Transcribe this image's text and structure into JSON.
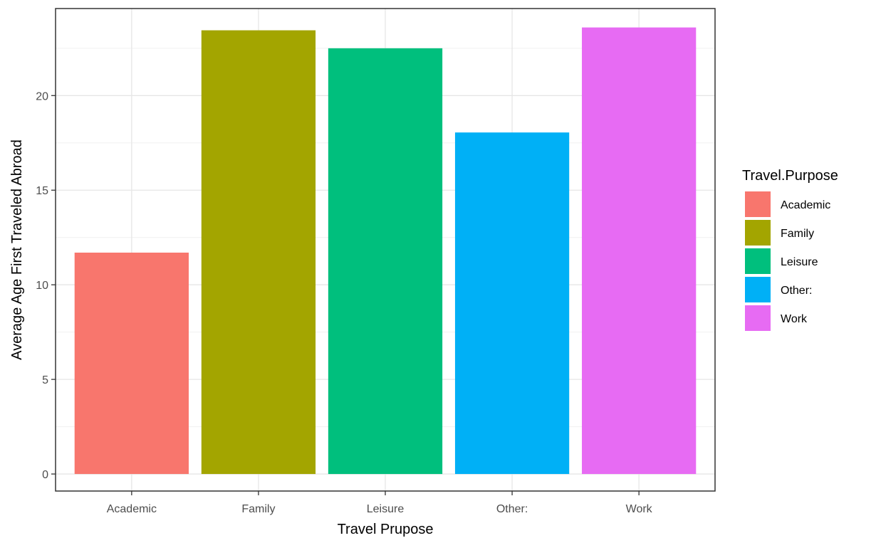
{
  "chart_data": {
    "type": "bar",
    "categories": [
      "Academic",
      "Family",
      "Leisure",
      "Other:",
      "Work"
    ],
    "values": [
      11.7,
      23.45,
      22.5,
      18.05,
      23.6
    ],
    "colors": [
      "#F8766D",
      "#A3A500",
      "#00BF7D",
      "#00B0F6",
      "#E76BF3"
    ],
    "xlabel": "Travel Prupose",
    "ylabel": "Average Age First Traveled Abroad",
    "ylim": [
      -0.9,
      24.6
    ],
    "yticks": [
      0,
      5,
      10,
      15,
      20
    ],
    "grid": true,
    "legend": {
      "title": "Travel.Purpose",
      "position": "right",
      "entries": [
        "Academic",
        "Family",
        "Leisure",
        "Other:",
        "Work"
      ]
    }
  }
}
